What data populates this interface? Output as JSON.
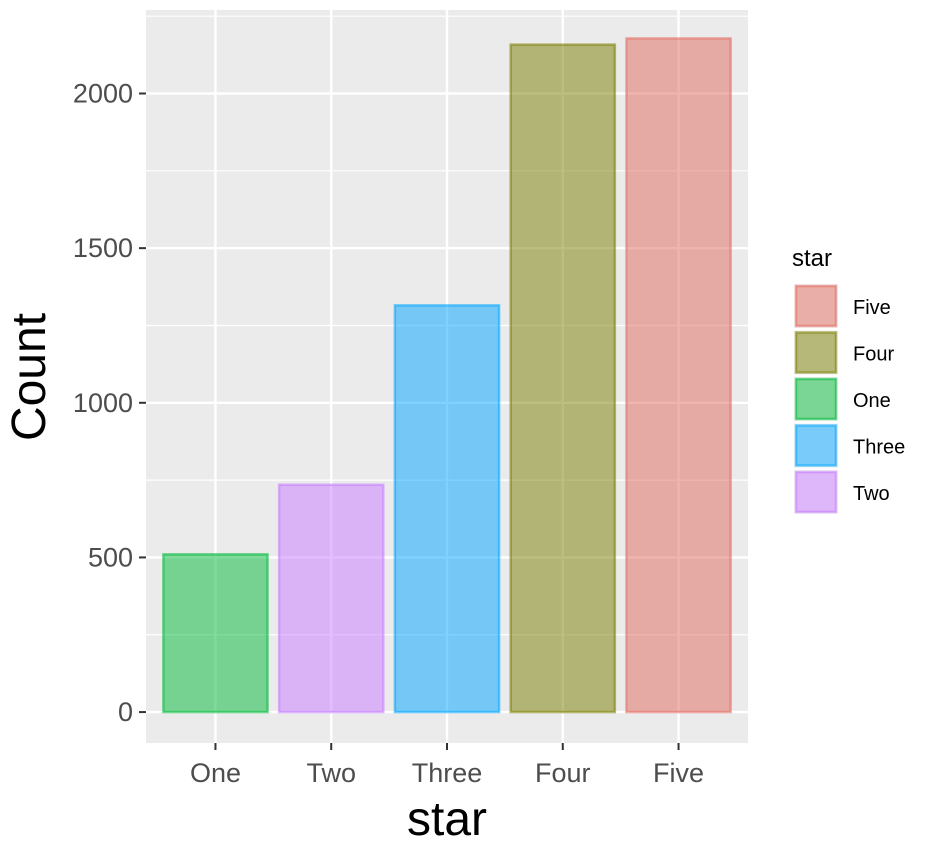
{
  "chart_data": {
    "type": "bar",
    "categories": [
      "One",
      "Two",
      "Three",
      "Four",
      "Five"
    ],
    "values": [
      510,
      735,
      1315,
      2158,
      2178
    ],
    "colors": {
      "One": "#00ba38",
      "Two": "#c77cff",
      "Three": "#00a5ff",
      "Four": "#7a7d00",
      "Five": "#e2695f"
    },
    "fill_opacity": 0.5,
    "xlabel": "star",
    "ylabel": "Count",
    "ylim": [
      -100,
      2270
    ],
    "yticks": [
      0,
      500,
      1000,
      1500,
      2000
    ],
    "yminor": [
      250,
      750,
      1250,
      1750,
      2250
    ],
    "grid": true,
    "panel_background": "#ebebeb",
    "legend": {
      "title": "star",
      "placement": "right",
      "entries": [
        "Five",
        "Four",
        "One",
        "Three",
        "Two"
      ]
    }
  }
}
